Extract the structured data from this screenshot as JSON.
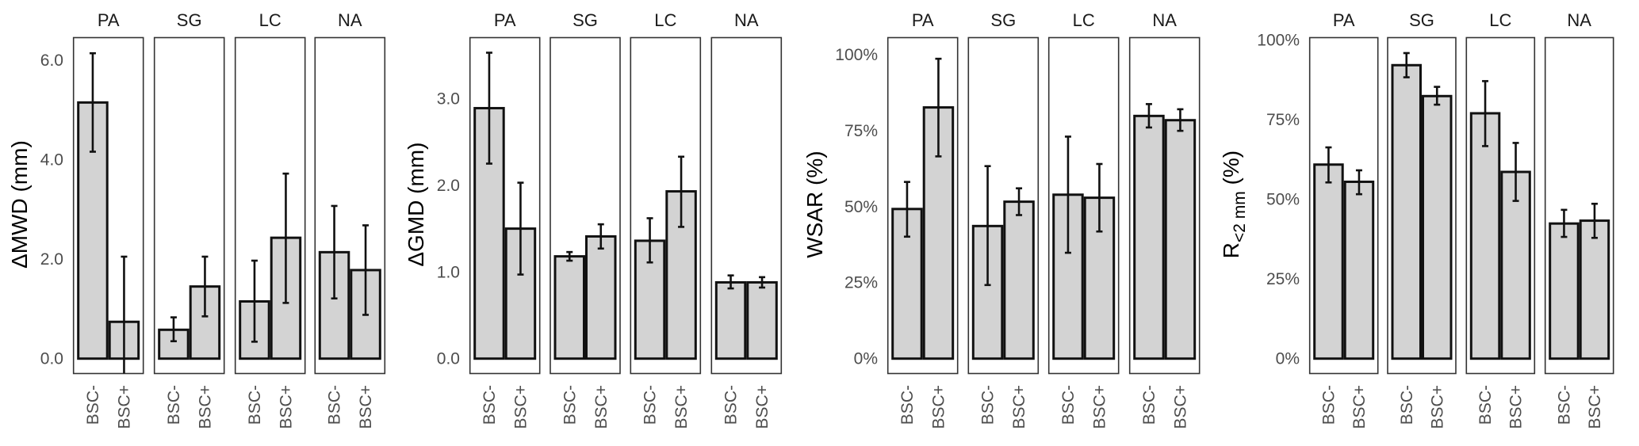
{
  "chart_data": [
    {
      "type": "bar",
      "title": "",
      "ylabel": "ΔMWD (mm)",
      "xlabel": "",
      "ylim": [
        0,
        6.0
      ],
      "yticks": [
        0.0,
        2.0,
        4.0,
        6.0
      ],
      "ytick_labels": [
        "0.0",
        "2.0",
        "4.0",
        "6.0"
      ],
      "facets": [
        "PA",
        "SG",
        "LC",
        "NA"
      ],
      "categories": [
        "BSC-",
        "BSC+"
      ],
      "grid": false,
      "series": [
        {
          "facet": "PA",
          "values": [
            5.15,
            0.74
          ],
          "err_low": [
            4.16,
            -0.3
          ],
          "err_high": [
            6.14,
            2.05
          ]
        },
        {
          "facet": "SG",
          "values": [
            0.58,
            1.45
          ],
          "err_low": [
            0.35,
            0.85
          ],
          "err_high": [
            0.83,
            2.05
          ]
        },
        {
          "facet": "LC",
          "values": [
            1.15,
            2.43
          ],
          "err_low": [
            0.34,
            1.12
          ],
          "err_high": [
            1.97,
            3.72
          ]
        },
        {
          "facet": "NA",
          "values": [
            2.14,
            1.78
          ],
          "err_low": [
            1.21,
            0.88
          ],
          "err_high": [
            3.07,
            2.68
          ]
        }
      ]
    },
    {
      "type": "bar",
      "title": "",
      "ylabel": "ΔGMD (mm)",
      "xlabel": "",
      "ylim": [
        0,
        3.0
      ],
      "yticks": [
        0.0,
        1.0,
        2.0,
        3.0
      ],
      "ytick_labels": [
        "0.0",
        "1.0",
        "2.0",
        "3.0"
      ],
      "facets": [
        "PA",
        "SG",
        "LC",
        "NA"
      ],
      "categories": [
        "BSC-",
        "BSC+"
      ],
      "grid": false,
      "series": [
        {
          "facet": "PA",
          "values": [
            2.89,
            1.5
          ],
          "err_low": [
            2.25,
            0.97
          ],
          "err_high": [
            3.53,
            2.03
          ]
        },
        {
          "facet": "SG",
          "values": [
            1.18,
            1.41
          ],
          "err_low": [
            1.13,
            1.27
          ],
          "err_high": [
            1.23,
            1.55
          ]
        },
        {
          "facet": "LC",
          "values": [
            1.36,
            1.93
          ],
          "err_low": [
            1.11,
            1.52
          ],
          "err_high": [
            1.62,
            2.33
          ]
        },
        {
          "facet": "NA",
          "values": [
            0.88,
            0.88
          ],
          "err_low": [
            0.81,
            0.82
          ],
          "err_high": [
            0.96,
            0.94
          ]
        }
      ]
    },
    {
      "type": "bar",
      "title": "",
      "ylabel": "WSAR (%)",
      "xlabel": "",
      "ylim": [
        0,
        100
      ],
      "yticks": [
        0,
        25,
        50,
        75,
        100
      ],
      "ytick_labels": [
        "0%",
        "25%",
        "50%",
        "75%",
        "100%"
      ],
      "facets": [
        "PA",
        "SG",
        "LC",
        "NA"
      ],
      "categories": [
        "BSC-",
        "BSC+"
      ],
      "grid": false,
      "series": [
        {
          "facet": "PA",
          "values": [
            49.2,
            82.6
          ],
          "err_low": [
            40.1,
            66.5
          ],
          "err_high": [
            58.1,
            98.6
          ]
        },
        {
          "facet": "SG",
          "values": [
            43.6,
            51.6
          ],
          "err_low": [
            24.2,
            47.2
          ],
          "err_high": [
            63.3,
            56.0
          ]
        },
        {
          "facet": "LC",
          "values": [
            53.9,
            52.9
          ],
          "err_low": [
            34.8,
            41.8
          ],
          "err_high": [
            73.0,
            64.0
          ]
        },
        {
          "facet": "NA",
          "values": [
            79.8,
            78.4
          ],
          "err_low": [
            76.0,
            74.9
          ],
          "err_high": [
            83.7,
            82.0
          ]
        }
      ]
    },
    {
      "type": "bar",
      "title": "",
      "ylabel": "R",
      "ylabel_subscript": "<2 mm",
      "ylabel_suffix": " (%)",
      "xlabel": "",
      "ylim": [
        0,
        100
      ],
      "yticks": [
        0,
        25,
        50,
        75,
        100
      ],
      "ytick_labels": [
        "0%",
        "25%",
        "50%",
        "75%",
        "100%"
      ],
      "facets": [
        "PA",
        "SG",
        "LC",
        "NA"
      ],
      "categories": [
        "BSC-",
        "BSC+"
      ],
      "grid": false,
      "series": [
        {
          "facet": "PA",
          "values": [
            60.9,
            55.5
          ],
          "err_low": [
            55.3,
            51.6
          ],
          "err_high": [
            66.3,
            59.1
          ]
        },
        {
          "facet": "SG",
          "values": [
            92.1,
            82.4
          ],
          "err_low": [
            88.3,
            79.7
          ],
          "err_high": [
            95.9,
            85.3
          ]
        },
        {
          "facet": "LC",
          "values": [
            77.0,
            58.6
          ],
          "err_low": [
            66.7,
            49.5
          ],
          "err_high": [
            87.1,
            67.7
          ]
        },
        {
          "facet": "NA",
          "values": [
            42.4,
            43.3
          ],
          "err_low": [
            38.2,
            37.9
          ],
          "err_high": [
            46.7,
            48.6
          ]
        }
      ]
    }
  ]
}
